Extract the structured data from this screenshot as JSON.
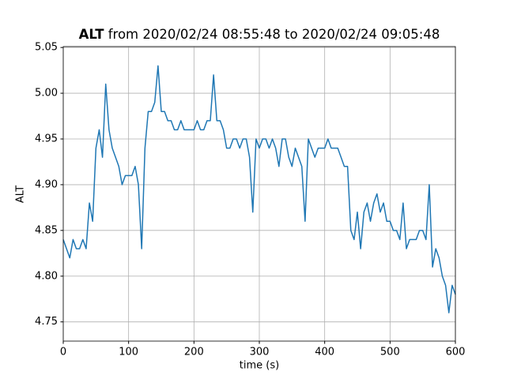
{
  "chart_data": {
    "type": "line",
    "title_variable": "ALT",
    "title": "from 2020/02/24 08:55:48 to 2020/02/24 09:05:48",
    "x_label": "time (s)",
    "y_label": "ALT",
    "x": [
      0,
      5,
      10,
      15,
      20,
      25,
      30,
      35,
      40,
      45,
      50,
      55,
      60,
      65,
      70,
      75,
      80,
      85,
      90,
      95,
      100,
      105,
      110,
      115,
      120,
      125,
      130,
      135,
      140,
      145,
      150,
      155,
      160,
      165,
      170,
      175,
      180,
      185,
      190,
      195,
      200,
      205,
      210,
      215,
      220,
      225,
      230,
      235,
      240,
      245,
      250,
      255,
      260,
      265,
      270,
      275,
      280,
      285,
      290,
      295,
      300,
      305,
      310,
      315,
      320,
      325,
      330,
      335,
      340,
      345,
      350,
      355,
      360,
      365,
      370,
      375,
      380,
      385,
      390,
      395,
      400,
      405,
      410,
      415,
      420,
      425,
      430,
      435,
      440,
      445,
      450,
      455,
      460,
      465,
      470,
      475,
      480,
      485,
      490,
      495,
      500,
      505,
      510,
      515,
      520,
      525,
      530,
      535,
      540,
      545,
      550,
      555,
      560,
      565,
      570,
      575,
      580,
      585,
      590,
      595,
      600
    ],
    "series": [
      {
        "name": "ALT",
        "color": "#1f77b4",
        "values": [
          4.84,
          4.83,
          4.82,
          4.84,
          4.83,
          4.83,
          4.84,
          4.83,
          4.88,
          4.86,
          4.94,
          4.96,
          4.93,
          5.01,
          4.96,
          4.94,
          4.93,
          4.92,
          4.9,
          4.91,
          4.91,
          4.91,
          4.92,
          4.9,
          4.83,
          4.94,
          4.98,
          4.98,
          4.99,
          5.03,
          4.98,
          4.98,
          4.97,
          4.97,
          4.96,
          4.96,
          4.97,
          4.96,
          4.96,
          4.96,
          4.96,
          4.97,
          4.96,
          4.96,
          4.97,
          4.97,
          5.02,
          4.97,
          4.97,
          4.96,
          4.94,
          4.94,
          4.95,
          4.95,
          4.94,
          4.95,
          4.95,
          4.93,
          4.87,
          4.95,
          4.94,
          4.95,
          4.95,
          4.94,
          4.95,
          4.94,
          4.92,
          4.95,
          4.95,
          4.93,
          4.92,
          4.94,
          4.93,
          4.92,
          4.86,
          4.95,
          4.94,
          4.93,
          4.94,
          4.94,
          4.94,
          4.95,
          4.94,
          4.94,
          4.94,
          4.93,
          4.92,
          4.92,
          4.85,
          4.84,
          4.87,
          4.83,
          4.87,
          4.88,
          4.86,
          4.88,
          4.89,
          4.87,
          4.88,
          4.86,
          4.86,
          4.85,
          4.85,
          4.84,
          4.88,
          4.83,
          4.84,
          4.84,
          4.84,
          4.85,
          4.85,
          4.84,
          4.9,
          4.81,
          4.83,
          4.82,
          4.8,
          4.79,
          4.76,
          4.79,
          4.78
        ]
      }
    ],
    "xlim": [
      0,
      600
    ],
    "xticks": [
      0,
      100,
      200,
      300,
      400,
      500,
      600
    ],
    "ylim": [
      4.729,
      5.051
    ],
    "yticks": [
      4.75,
      {
        "value": 4.8,
        "label": "4.80"
      },
      4.85,
      {
        "value": 4.9,
        "label": "4.90"
      },
      4.95,
      {
        "value": 5.0,
        "label": "5.00"
      },
      5.05
    ],
    "grid": true
  }
}
